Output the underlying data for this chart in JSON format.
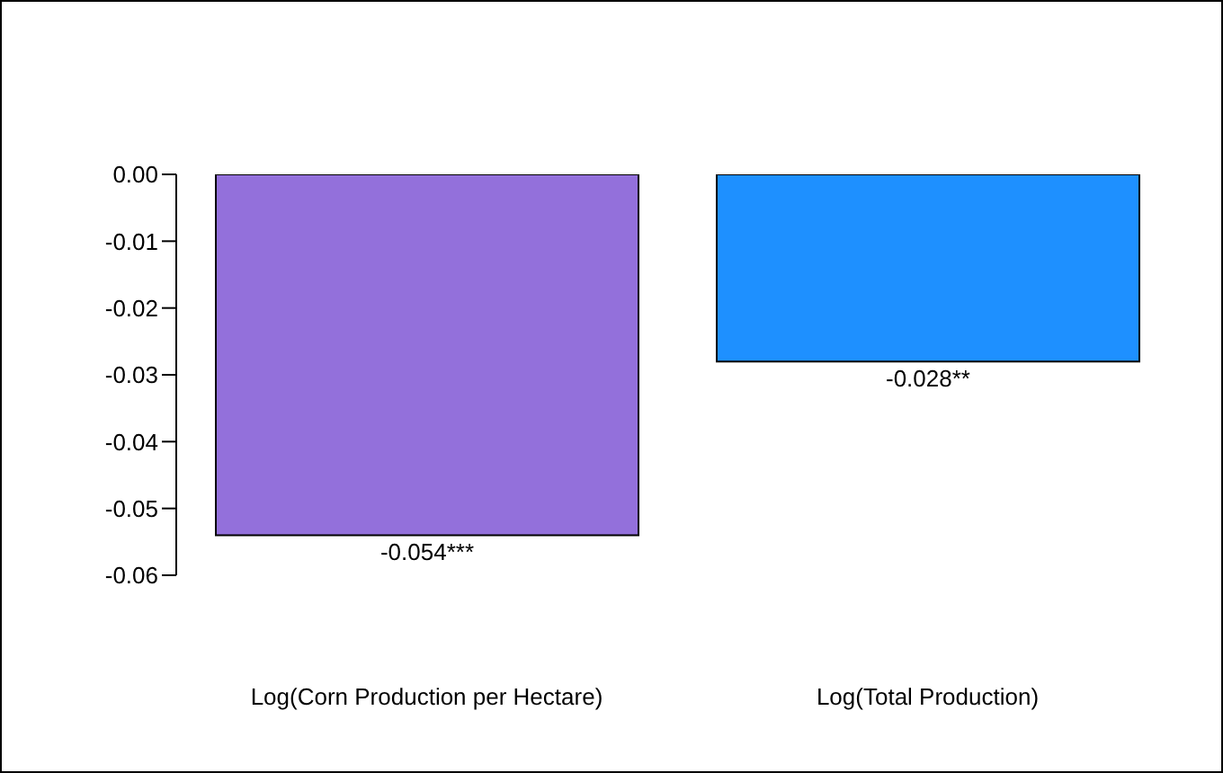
{
  "chart_data": {
    "type": "bar",
    "categories": [
      "Log(Corn Production per Hectare)",
      "Log(Total Production)"
    ],
    "values": [
      -0.054,
      -0.028
    ],
    "colors": [
      "#9370db",
      "#1e90ff"
    ],
    "value_labels": [
      "-0.054***",
      "-0.028**"
    ],
    "ylim": [
      -0.06,
      0
    ],
    "yticks": [
      {
        "value": 0,
        "label": "0.00"
      },
      {
        "value": -0.01,
        "label": "-0.01"
      },
      {
        "value": -0.02,
        "label": "-0.02"
      },
      {
        "value": -0.03,
        "label": "-0.03"
      },
      {
        "value": -0.04,
        "label": "-0.04"
      },
      {
        "value": -0.05,
        "label": "-0.05"
      },
      {
        "value": -0.06,
        "label": "-0.06"
      }
    ],
    "grid": false
  }
}
